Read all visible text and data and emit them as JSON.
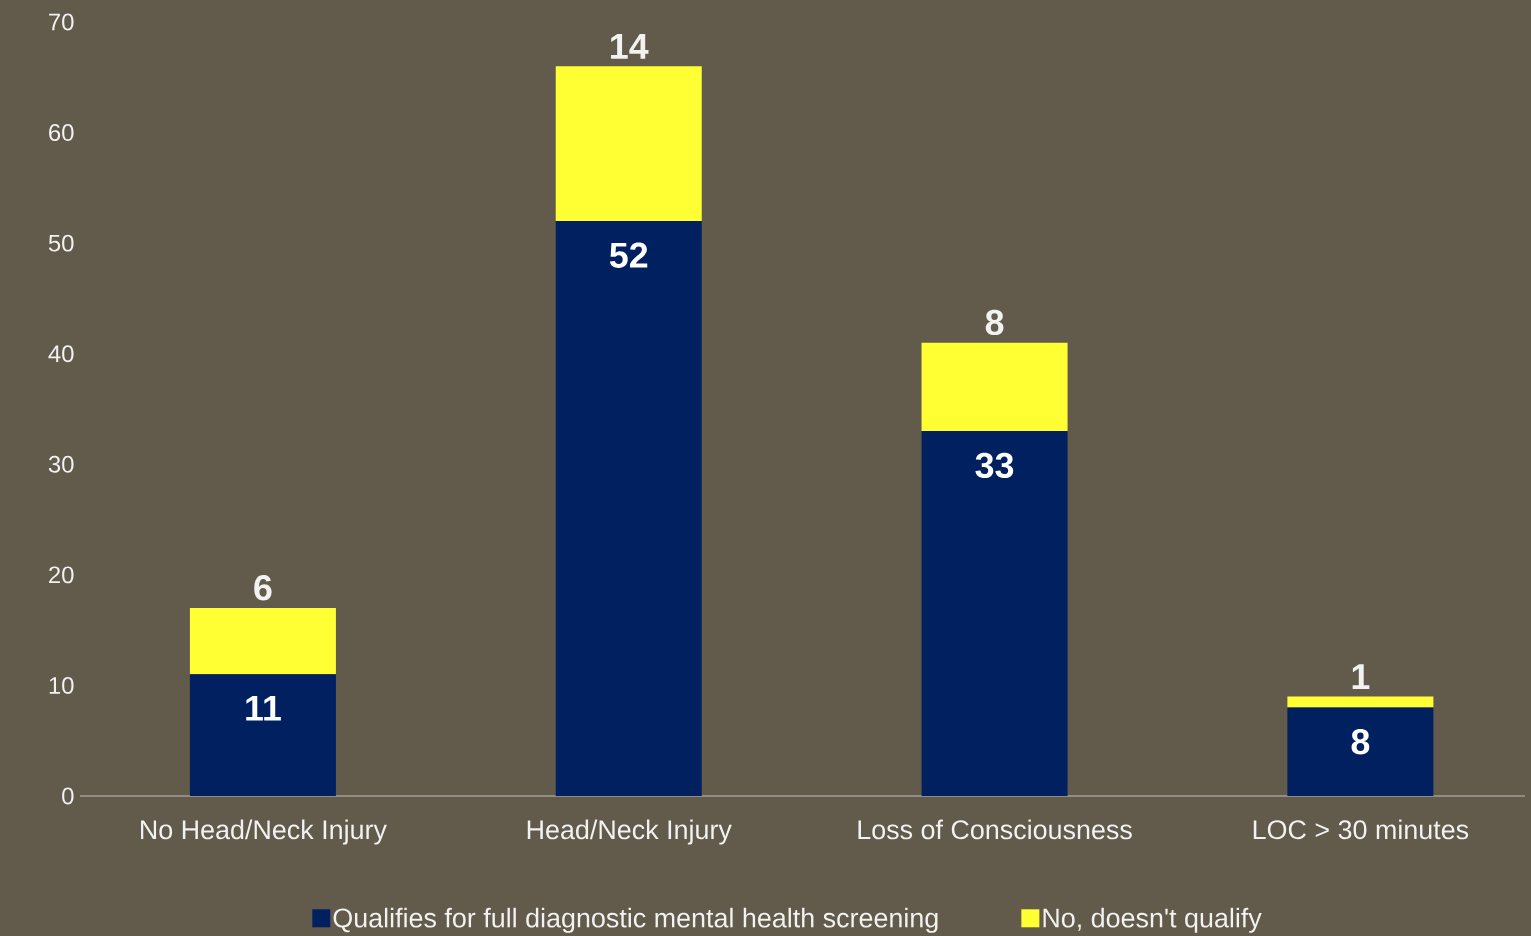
{
  "chart_data": {
    "type": "bar",
    "stacked": true,
    "categories": [
      "No Head/Neck Injury",
      "Head/Neck Injury",
      "Loss of Consciousness",
      "LOC > 30 minutes"
    ],
    "series": [
      {
        "name": "Qualifies for full diagnostic mental health screening",
        "color": "#002060",
        "values": [
          11,
          52,
          33,
          8
        ]
      },
      {
        "name": "No, doesn't qualify",
        "color": "#ffff33",
        "values": [
          6,
          14,
          8,
          1
        ]
      }
    ],
    "ylim": [
      0,
      70
    ],
    "yticks": [
      0,
      10,
      20,
      30,
      40,
      50,
      60,
      70
    ],
    "data_labels": true,
    "legend": "bottom"
  }
}
